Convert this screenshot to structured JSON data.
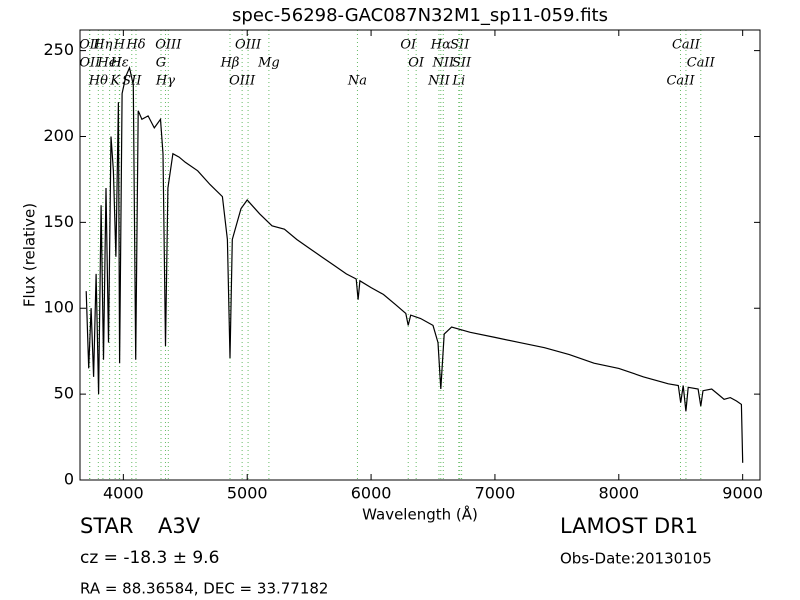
{
  "chart_data": {
    "type": "line",
    "title": "spec-56298-GAC087N32M1_sp11-059.fits",
    "x_label": "Wavelength (Å)",
    "y_label": "Flux (relative)",
    "xlim": [
      3650,
      9140
    ],
    "ylim": [
      0,
      262
    ],
    "xticks": [
      4000,
      5000,
      6000,
      7000,
      8000,
      9000
    ],
    "yticks": [
      0,
      50,
      100,
      150,
      200,
      250
    ],
    "color": "#000000",
    "line_color": "#66bb66",
    "x": [
      3700,
      3720,
      3740,
      3760,
      3780,
      3800,
      3820,
      3840,
      3860,
      3880,
      3900,
      3920,
      3940,
      3960,
      3970,
      3990,
      4020,
      4050,
      4080,
      4100,
      4120,
      4150,
      4200,
      4250,
      4300,
      4320,
      4340,
      4360,
      4400,
      4450,
      4500,
      4600,
      4700,
      4800,
      4840,
      4861,
      4880,
      4950,
      5000,
      5100,
      5200,
      5300,
      5400,
      5500,
      5600,
      5700,
      5800,
      5880,
      5895,
      5910,
      6000,
      6100,
      6200,
      6280,
      6300,
      6320,
      6400,
      6500,
      6540,
      6563,
      6590,
      6650,
      6800,
      7000,
      7200,
      7400,
      7600,
      7800,
      8000,
      8200,
      8400,
      8480,
      8500,
      8520,
      8542,
      8560,
      8640,
      8662,
      8680,
      8750,
      8800,
      8850,
      8900,
      8950,
      8990,
      9000
    ],
    "values": [
      110,
      65,
      100,
      60,
      120,
      50,
      160,
      70,
      170,
      80,
      200,
      180,
      130,
      220,
      68,
      225,
      235,
      240,
      230,
      70,
      215,
      210,
      212,
      205,
      210,
      190,
      78,
      170,
      190,
      188,
      185,
      180,
      172,
      165,
      140,
      71,
      140,
      158,
      163,
      155,
      148,
      146,
      140,
      135,
      130,
      125,
      120,
      117,
      105,
      116,
      112,
      108,
      102,
      97,
      90,
      96,
      94,
      90,
      80,
      53,
      85,
      89,
      86,
      83,
      80,
      77,
      73,
      68,
      65,
      60,
      56,
      55,
      45,
      55,
      40,
      54,
      53,
      43,
      52,
      53,
      50,
      47,
      48,
      46,
      44,
      10
    ],
    "lines": [
      {
        "label": "OII",
        "wavelength": 3727
      },
      {
        "label": "OII",
        "wavelength": 3729
      },
      {
        "label": "Hθ",
        "wavelength": 3798
      },
      {
        "label": "Hη",
        "wavelength": 3835
      },
      {
        "label": "HeI",
        "wavelength": 3889
      },
      {
        "label": "K",
        "wavelength": 3934
      },
      {
        "label": "H",
        "wavelength": 3968
      },
      {
        "label": "Hε",
        "wavelength": 3970
      },
      {
        "label": "SII",
        "wavelength": 4068
      },
      {
        "label": "Hδ",
        "wavelength": 4102
      },
      {
        "label": "G",
        "wavelength": 4304
      },
      {
        "label": "Hγ",
        "wavelength": 4340
      },
      {
        "label": "OIII",
        "wavelength": 4363
      },
      {
        "label": "Hβ",
        "wavelength": 4861
      },
      {
        "label": "OIII",
        "wavelength": 4959
      },
      {
        "label": "OIII",
        "wavelength": 5007
      },
      {
        "label": "Mg",
        "wavelength": 5175
      },
      {
        "label": "Na",
        "wavelength": 5890
      },
      {
        "label": "OI",
        "wavelength": 6300
      },
      {
        "label": "OI",
        "wavelength": 6364
      },
      {
        "label": "NII",
        "wavelength": 6548
      },
      {
        "label": "Hα",
        "wavelength": 6563
      },
      {
        "label": "NII",
        "wavelength": 6583
      },
      {
        "label": "Li",
        "wavelength": 6708
      },
      {
        "label": "SII",
        "wavelength": 6716
      },
      {
        "label": "SII",
        "wavelength": 6731
      },
      {
        "label": "CaII",
        "wavelength": 8498
      },
      {
        "label": "CaII",
        "wavelength": 8542
      },
      {
        "label": "CaII",
        "wavelength": 8662
      }
    ]
  },
  "info": {
    "class": "STAR",
    "subclass": "A3V",
    "cz": "cz = -18.3 ± 9.6",
    "survey": "LAMOST DR1",
    "obs_date": "Obs-Date:20130105",
    "coords": "RA = 88.36584, DEC = 33.77182"
  }
}
